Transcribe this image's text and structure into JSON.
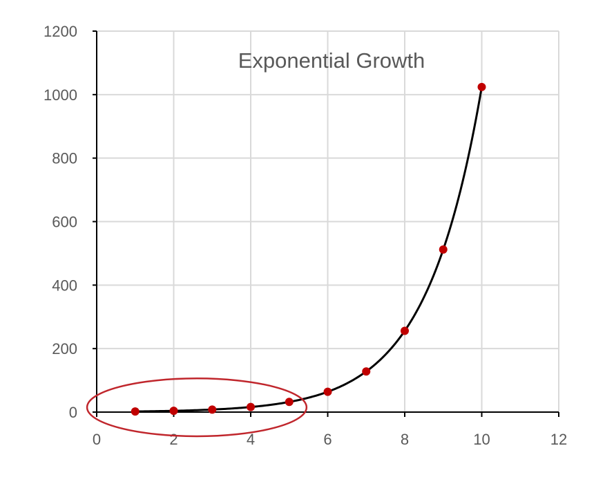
{
  "chart_data": {
    "type": "scatter",
    "title": "Exponential Growth",
    "xlabel": "",
    "ylabel": "",
    "xlim": [
      0,
      12
    ],
    "ylim": [
      0,
      1200
    ],
    "x_ticks": [
      "0",
      "2",
      "4",
      "6",
      "8",
      "10",
      "12"
    ],
    "y_ticks": [
      "0",
      "200",
      "400",
      "600",
      "800",
      "1000",
      "1200"
    ],
    "grid": true,
    "legend": "none",
    "series": [
      {
        "x": [
          1,
          2,
          3,
          4,
          5,
          6,
          7,
          8,
          9,
          10
        ],
        "y": [
          2,
          4,
          8,
          16,
          32,
          64,
          128,
          256,
          512,
          1024
        ],
        "marker_color": "#c00000",
        "trendline": "exponential",
        "trendline_color": "#000000"
      }
    ],
    "annotation": {
      "shape": "ellipse",
      "color": "#c0262c",
      "cx": 2.6,
      "cy": 15,
      "rx": 2.85,
      "ry": 65
    },
    "colors": {
      "grid": "#d9d9d9",
      "axis": "#000000",
      "text": "#595959"
    }
  }
}
